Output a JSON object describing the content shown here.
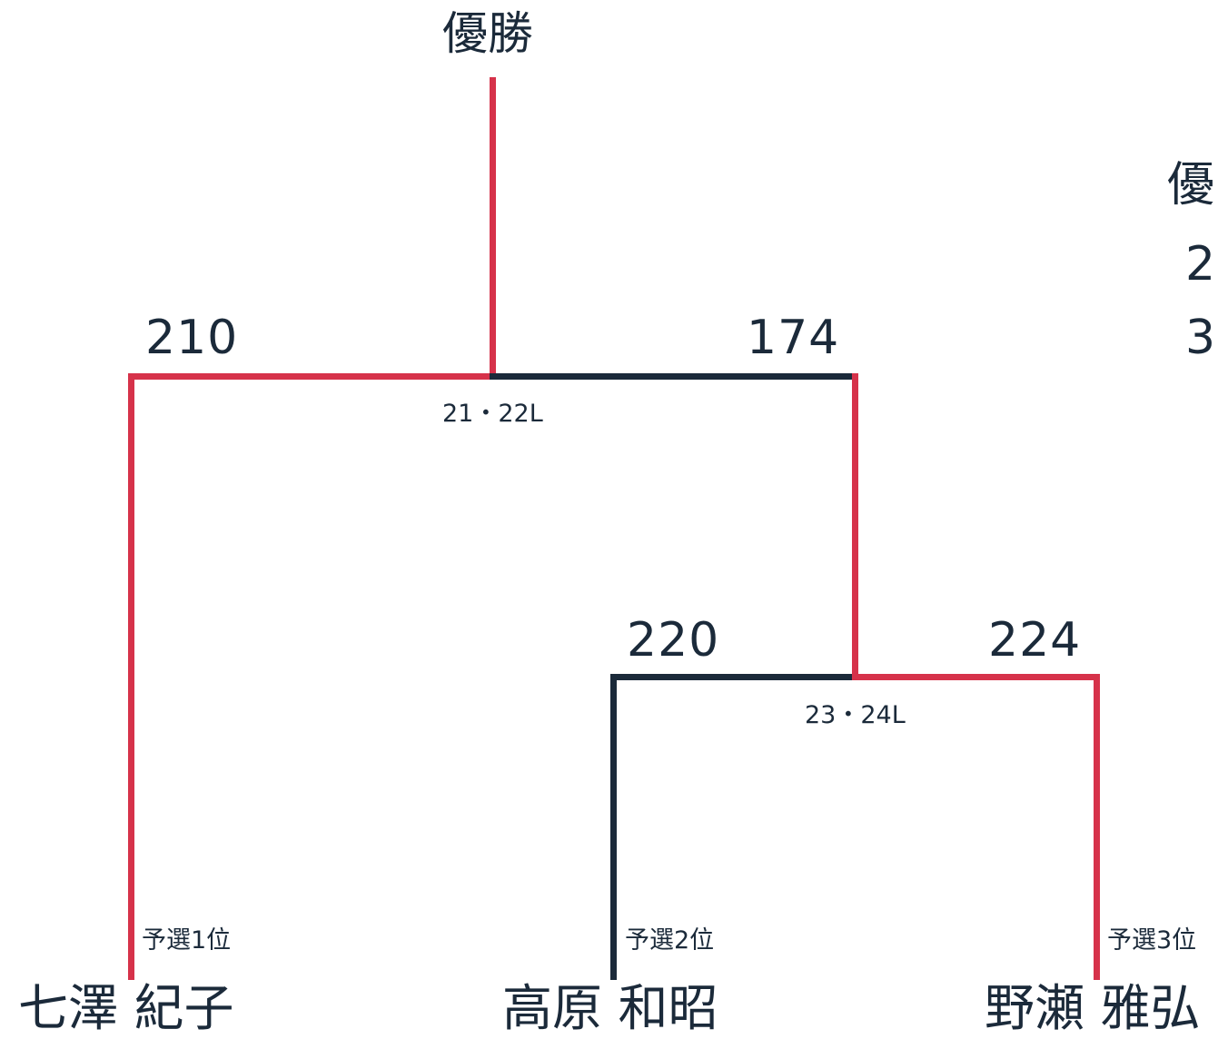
{
  "champion_label": "優勝",
  "final": {
    "left_score": "210",
    "right_score": "174",
    "lanes": "21・22L"
  },
  "semifinal": {
    "left_score": "220",
    "right_score": "224",
    "lanes": "23・24L"
  },
  "players": [
    {
      "seed": "予選1位",
      "name": "七澤 紀子"
    },
    {
      "seed": "予選2位",
      "name": "高原 和昭"
    },
    {
      "seed": "予選3位",
      "name": "野瀬 雅弘"
    }
  ],
  "side_panel": {
    "line1": "優",
    "line2": "2",
    "line3": "3"
  },
  "colors": {
    "winner_line": "#d6324a",
    "loser_line": "#1b2a3a",
    "text": "#1b2a3a"
  }
}
